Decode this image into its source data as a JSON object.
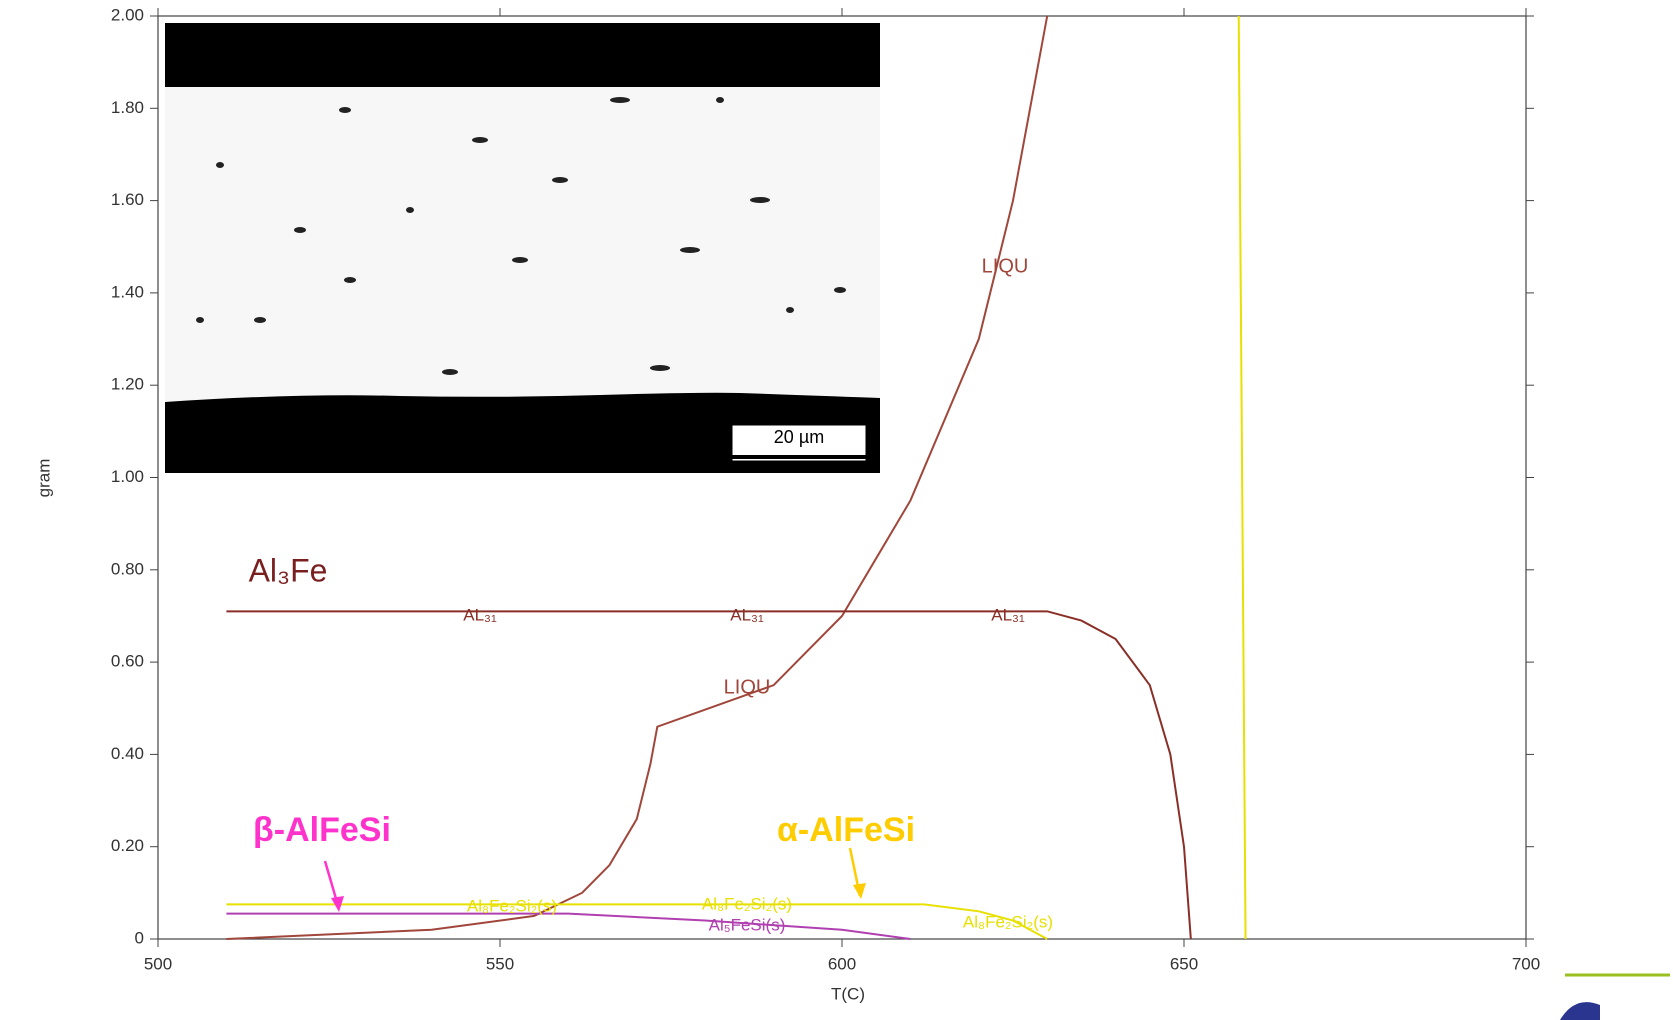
{
  "chart_data": {
    "type": "line",
    "x_label": "T(C)",
    "y_label": "gram",
    "xlim": [
      500,
      700
    ],
    "xticks": [
      500,
      550,
      600,
      650,
      700
    ],
    "ylim": [
      0,
      2
    ],
    "yticks": [
      0,
      {
        "value": 0.2,
        "label": "0.20"
      },
      {
        "value": 0.4,
        "label": "0.40"
      },
      {
        "value": 0.6,
        "label": "0.60"
      },
      {
        "value": 0.8,
        "label": "0.80"
      },
      {
        "value": 1,
        "label": "1.00"
      },
      {
        "value": 1.2,
        "label": "1.20"
      },
      {
        "value": 1.4,
        "label": "1.40"
      },
      {
        "value": 1.6,
        "label": "1.60"
      },
      {
        "value": 1.8,
        "label": "1.80"
      },
      {
        "value": 2,
        "label": "2.00"
      }
    ],
    "series": [
      {
        "name": "LIQU",
        "color": "#a0463a",
        "x": [
          510,
          540,
          555,
          562,
          566,
          570,
          572,
          573,
          590,
          600,
          610,
          620,
          625,
          630
        ],
        "values": [
          0,
          0.02,
          0.05,
          0.1,
          0.16,
          0.26,
          0.38,
          0.46,
          0.55,
          0.7,
          0.95,
          1.3,
          1.6,
          2
        ]
      },
      {
        "name": "AL₃₁",
        "color": "#8a2f28",
        "x": [
          510,
          630,
          635,
          640,
          645,
          648,
          650,
          651
        ],
        "values": [
          0.71,
          0.71,
          0.69,
          0.65,
          0.55,
          0.4,
          0.2,
          0
        ]
      },
      {
        "name": "Al₈Fe₂Si₂(s)",
        "color": "#e8e000",
        "x": [
          510,
          612,
          620,
          625,
          630
        ],
        "values": [
          0.075,
          0.075,
          0.06,
          0.04,
          0
        ]
      },
      {
        "name": "Al₅FeSi(s)",
        "color": "#b040b0",
        "x": [
          510,
          560,
          580,
          600,
          610
        ],
        "values": [
          0.055,
          0.055,
          0.04,
          0.02,
          0
        ]
      },
      {
        "color": "#e8e000",
        "x": [
          658,
          659
        ],
        "values": [
          2,
          0
        ]
      }
    ],
    "annotations": [
      "LIQU",
      "LIQU",
      "AL₃₁",
      "AL₃₁",
      "AL₃₁",
      "Al₃Fe",
      "β-AlFeSi",
      "α-AlFeSi",
      "Al₈Fe₂Si₂(s)",
      "Al₈Fe₂Si₂(s)",
      "Al₈Fe₂Si₂(s)",
      "Al₅FeSi(s)"
    ],
    "inset_scale_bar": "20 µm"
  }
}
